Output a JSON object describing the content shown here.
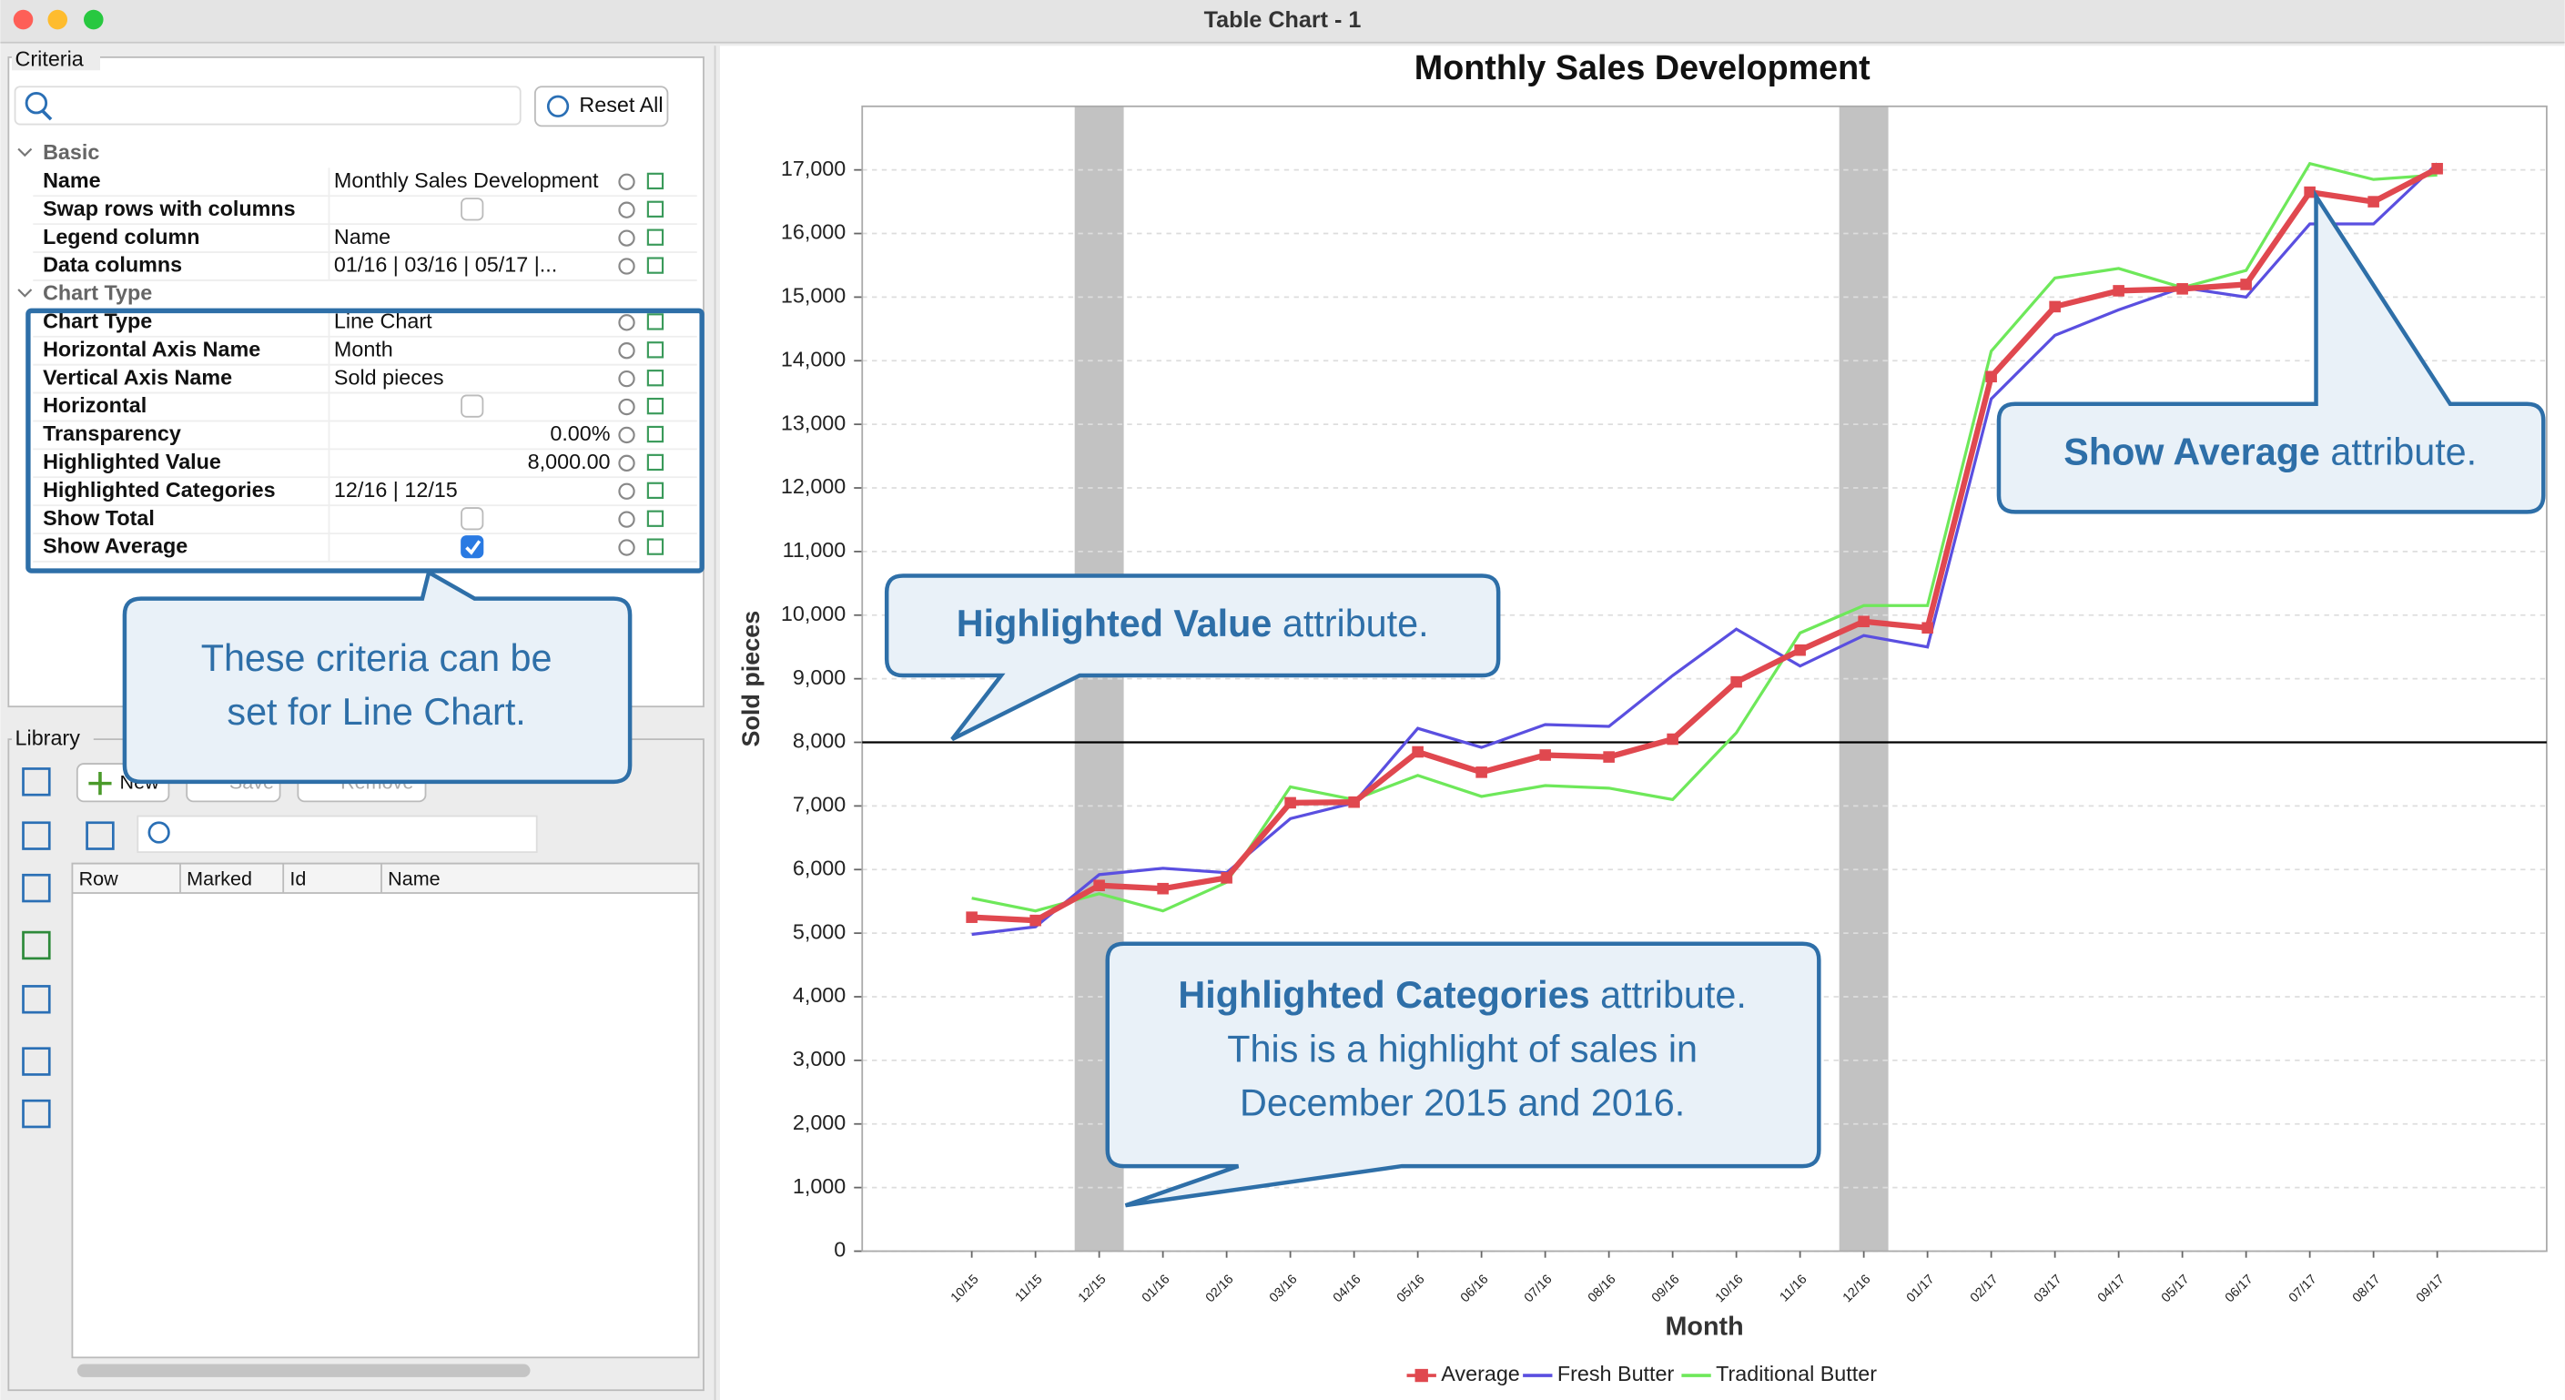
{
  "window": {
    "title": "Table Chart - 1"
  },
  "criteria": {
    "label": "Criteria",
    "reset_button": "Reset All",
    "groups": [
      {
        "name": "Basic",
        "rows": [
          {
            "name": "Name",
            "value": "Monthly Sales Development"
          },
          {
            "name": "Swap rows with columns",
            "checked": false
          },
          {
            "name": "Legend column",
            "value": "Name"
          },
          {
            "name": "Data columns",
            "value": "01/16 | 03/16 | 05/17 |..."
          }
        ]
      },
      {
        "name": "Chart Type",
        "rows": [
          {
            "name": "Chart Type",
            "value": "Line Chart"
          },
          {
            "name": "Horizontal Axis Name",
            "value": "Month"
          },
          {
            "name": "Vertical Axis Name",
            "value": "Sold pieces"
          },
          {
            "name": "Horizontal",
            "checked": false
          },
          {
            "name": "Transparency",
            "value": "0.00%"
          },
          {
            "name": "Highlighted Value",
            "value": "8,000.00"
          },
          {
            "name": "Highlighted Categories",
            "value": "12/16 | 12/15"
          },
          {
            "name": "Show Total",
            "checked": false
          },
          {
            "name": "Show Average",
            "checked": true
          }
        ]
      }
    ]
  },
  "library": {
    "label": "Library",
    "buttons": [
      "New",
      "Save",
      "Remove"
    ],
    "columns": [
      "Row",
      "Marked",
      "Id",
      "Name"
    ]
  },
  "chart": {
    "type": "line",
    "title": "Monthly Sales Development",
    "x_label": "Month",
    "y_label": "Sold pieces",
    "categories": [
      "10/15",
      "11/15",
      "12/15",
      "01/16",
      "02/16",
      "03/16",
      "04/16",
      "05/16",
      "06/16",
      "07/16",
      "08/16",
      "09/16",
      "10/16",
      "11/16",
      "12/16",
      "01/17",
      "02/17",
      "03/17",
      "04/17",
      "05/17",
      "06/17",
      "07/17",
      "08/17",
      "09/17"
    ],
    "series": [
      {
        "name": "Average",
        "color": "#e0484f",
        "values": [
          5250,
          5200,
          5750,
          5700,
          5870,
          7050,
          7060,
          7850,
          7530,
          7800,
          7770,
          8050,
          8950,
          9450,
          9900,
          9800,
          13750,
          14850,
          15100,
          15130,
          15200,
          16650,
          16500,
          17020
        ]
      },
      {
        "name": "Fresh Butter",
        "color": "#5a4fe0",
        "values": [
          4980,
          5100,
          5920,
          6020,
          5950,
          6800,
          7050,
          8220,
          7920,
          8280,
          8250,
          9050,
          9780,
          9200,
          9680,
          9500,
          13400,
          14400,
          14800,
          15150,
          15000,
          16150,
          16150,
          17100
        ]
      },
      {
        "name": "Traditional Butter",
        "color": "#6ee85a",
        "values": [
          5550,
          5350,
          5620,
          5350,
          5800,
          7300,
          7100,
          7480,
          7150,
          7320,
          7280,
          7100,
          8150,
          9720,
          10150,
          10150,
          14150,
          15300,
          15450,
          15150,
          15420,
          17100,
          16850,
          16920
        ]
      }
    ],
    "ylim": [
      0,
      18000
    ],
    "yticks": [
      0,
      {
        "value": 1000,
        "label": "1,000"
      },
      {
        "value": 2000,
        "label": "2,000"
      },
      {
        "value": 3000,
        "label": "3,000"
      },
      {
        "value": 4000,
        "label": "4,000"
      },
      {
        "value": 5000,
        "label": "5,000"
      },
      {
        "value": 6000,
        "label": "6,000"
      },
      {
        "value": 7000,
        "label": "7,000"
      },
      {
        "value": 8000,
        "label": "8,000"
      },
      {
        "value": 9000,
        "label": "9,000"
      },
      {
        "value": 10000,
        "label": "10,000"
      },
      {
        "value": 11000,
        "label": "11,000"
      },
      {
        "value": 12000,
        "label": "12,000"
      },
      {
        "value": 13000,
        "label": "13,000"
      },
      {
        "value": 14000,
        "label": "14,000"
      },
      {
        "value": 15000,
        "label": "15,000"
      },
      {
        "value": 16000,
        "label": "16,000"
      },
      {
        "value": 17000,
        "label": "17,000"
      }
    ],
    "grid": true,
    "highlight_value": 8000,
    "highlighted_categories": [
      "12/15",
      "12/16"
    ],
    "legend": "bottom"
  },
  "callouts": [
    {
      "lines": [
        {
          "text": "These criteria can be"
        },
        {
          "text": "set for Line Chart."
        }
      ]
    },
    {
      "lines": [
        {
          "bold": "Highlighted Value",
          "text": " attribute."
        }
      ]
    },
    {
      "lines": [
        {
          "bold": "Show Average",
          "text": " attribute."
        }
      ]
    },
    {
      "lines": [
        {
          "bold": "Highlighted Categories",
          "text": " attribute."
        },
        {
          "text": "This is a highlight of sales in"
        },
        {
          "text": "December 2015 and 2016."
        }
      ]
    }
  ]
}
